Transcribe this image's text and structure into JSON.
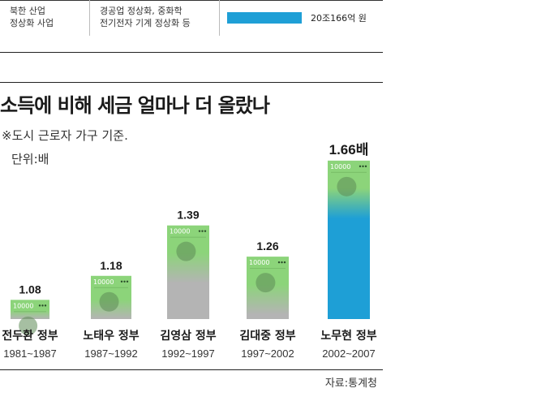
{
  "top_table": {
    "col1": [
      "북한 산업",
      "정상화 사업"
    ],
    "col2": [
      "경공업 정상화, 중화학",
      "전기전자 기계 정상화 등"
    ],
    "bar_value_label": "20조166억 원",
    "bar_color": "#1e9fd6"
  },
  "title": "소득에 비해 세금 얼마나 더 올랐나",
  "note": "※도시 근로자 가구 기준.",
  "unit": "단위:배",
  "source": "자료:통계청",
  "colors": {
    "green": "#8cd47a",
    "gray": "#b4b4b4",
    "blue": "#1e9fd6",
    "note_text": "10000"
  },
  "chart_data": {
    "type": "bar",
    "title": "소득에 비해 세금 얼마나 더 올랐나",
    "unit": "단위:배",
    "categories": [
      "전두환 정부",
      "노태우 정부",
      "김영삼 정부",
      "김대중 정부",
      "노무현 정부"
    ],
    "periods": [
      "1981~1987",
      "1987~1992",
      "1992~1997",
      "1997~2002",
      "2002~2007"
    ],
    "values": [
      1.08,
      1.18,
      1.39,
      1.26,
      1.66
    ],
    "value_labels": [
      "1.08",
      "1.18",
      "1.39",
      "1.26",
      "1.66배"
    ],
    "ylim": [
      1.0,
      1.7
    ],
    "grid": false
  }
}
